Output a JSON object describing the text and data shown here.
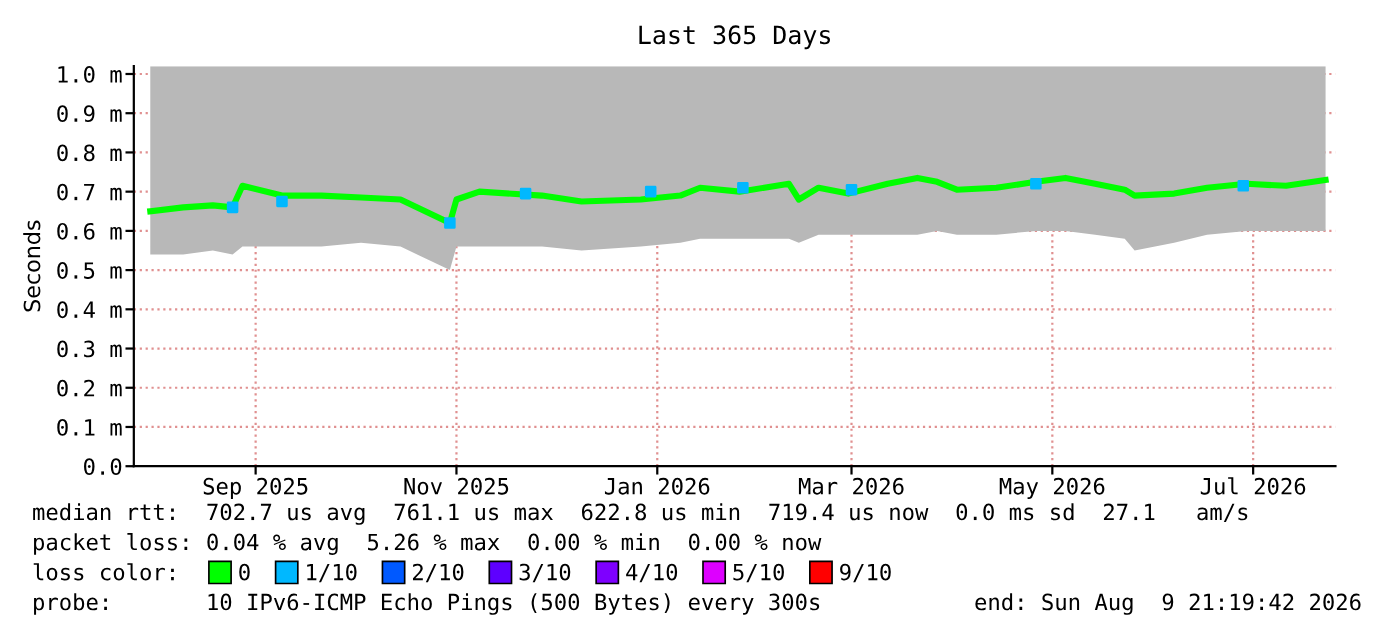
{
  "chart_data": {
    "type": "line",
    "title": "Last 365 Days",
    "ylabel": "Seconds",
    "x": [
      "2025-08-15",
      "2025-08-25",
      "2025-09-03",
      "2025-09-09",
      "2025-09-12",
      "2025-09-24",
      "2025-10-06",
      "2025-10-18",
      "2025-10-30",
      "2025-11-14",
      "2025-11-16",
      "2025-11-23",
      "2025-12-12",
      "2025-12-24",
      "2026-01-11",
      "2026-01-23",
      "2026-01-29",
      "2026-02-10",
      "2026-02-25",
      "2026-02-28",
      "2026-03-06",
      "2026-03-15",
      "2026-03-27",
      "2026-04-05",
      "2026-04-11",
      "2026-04-17",
      "2026-04-29",
      "2026-05-11",
      "2026-05-20",
      "2026-05-29",
      "2026-06-07",
      "2026-06-10",
      "2026-06-22",
      "2026-07-02",
      "2026-07-14",
      "2026-07-26",
      "2026-08-07"
    ],
    "series": [
      {
        "name": "0",
        "color": "#00ff00",
        "values": [
          0.65,
          0.66,
          0.665,
          0.66,
          0.715,
          0.69,
          0.69,
          0.685,
          0.68,
          0.62,
          0.68,
          0.7,
          0.69,
          0.675,
          0.68,
          0.69,
          0.71,
          0.7,
          0.72,
          0.68,
          0.71,
          0.695,
          0.72,
          0.735,
          0.725,
          0.705,
          0.71,
          0.725,
          0.735,
          0.72,
          0.705,
          0.69,
          0.695,
          0.71,
          0.72,
          0.715,
          0.73
        ],
        "lower": [
          0.54,
          0.54,
          0.55,
          0.54,
          0.56,
          0.56,
          0.56,
          0.57,
          0.56,
          0.5,
          0.56,
          0.56,
          0.56,
          0.55,
          0.56,
          0.57,
          0.58,
          0.58,
          0.58,
          0.57,
          0.59,
          0.59,
          0.59,
          0.59,
          0.6,
          0.59,
          0.59,
          0.6,
          0.6,
          0.59,
          0.58,
          0.55,
          0.57,
          0.59,
          0.6,
          0.6,
          0.6
        ],
        "upper": [
          1.02,
          1.02,
          1.02,
          1.02,
          1.02,
          1.02,
          1.02,
          1.02,
          1.02,
          1.02,
          1.02,
          1.02,
          1.02,
          1.02,
          1.02,
          1.02,
          1.02,
          1.02,
          1.02,
          1.02,
          1.02,
          1.02,
          1.02,
          1.02,
          1.02,
          1.02,
          1.02,
          1.02,
          1.02,
          1.02,
          1.02,
          1.02,
          1.02,
          1.02,
          1.02,
          1.02,
          1.02
        ]
      },
      {
        "name": "1/10",
        "type": "scatter",
        "marker": "square",
        "color": "#00b8ff",
        "x": [
          "2025-09-09",
          "2025-09-24",
          "2025-11-14",
          "2025-12-07",
          "2026-01-14",
          "2026-02-11",
          "2026-03-16",
          "2026-05-11",
          "2026-07-13"
        ],
        "values": [
          0.66,
          0.675,
          0.62,
          0.695,
          0.7,
          0.71,
          0.705,
          0.72,
          0.715
        ]
      },
      {
        "name": "2/10",
        "type": "scatter",
        "color": "#0059ff",
        "values": [
          null,
          null,
          null,
          null,
          null,
          null,
          null,
          null,
          null,
          null,
          null,
          null,
          null,
          null,
          null,
          null,
          null,
          null,
          null,
          null,
          null,
          null,
          null,
          null,
          null,
          null,
          null,
          null,
          null,
          null,
          null,
          null,
          null,
          null,
          null,
          null,
          null
        ]
      },
      {
        "name": "3/10",
        "type": "scatter",
        "color": "#5e00ff",
        "values": [
          null,
          null,
          null,
          null,
          null,
          null,
          null,
          null,
          null,
          null,
          null,
          null,
          null,
          null,
          null,
          null,
          null,
          null,
          null,
          null,
          null,
          null,
          null,
          null,
          null,
          null,
          null,
          null,
          null,
          null,
          null,
          null,
          null,
          null,
          null,
          null,
          null
        ]
      },
      {
        "name": "4/10",
        "type": "scatter",
        "color": "#7e00ff",
        "values": [
          null,
          null,
          null,
          null,
          null,
          null,
          null,
          null,
          null,
          null,
          null,
          null,
          null,
          null,
          null,
          null,
          null,
          null,
          null,
          null,
          null,
          null,
          null,
          null,
          null,
          null,
          null,
          null,
          null,
          null,
          null,
          null,
          null,
          null,
          null,
          null,
          null
        ]
      },
      {
        "name": "5/10",
        "type": "scatter",
        "color": "#dd00ff",
        "values": [
          null,
          null,
          null,
          null,
          null,
          null,
          null,
          null,
          null,
          null,
          null,
          null,
          null,
          null,
          null,
          null,
          null,
          null,
          null,
          null,
          null,
          null,
          null,
          null,
          null,
          null,
          null,
          null,
          null,
          null,
          null,
          null,
          null,
          null,
          null,
          null,
          null
        ]
      },
      {
        "name": "9/10",
        "type": "scatter",
        "color": "#ff0000",
        "values": [
          null,
          null,
          null,
          null,
          null,
          null,
          null,
          null,
          null,
          null,
          null,
          null,
          null,
          null,
          null,
          null,
          null,
          null,
          null,
          null,
          null,
          null,
          null,
          null,
          null,
          null,
          null,
          null,
          null,
          null,
          null,
          null,
          null,
          null,
          null,
          null,
          null
        ]
      }
    ],
    "xlim": [
      "2025-08-10",
      "2026-08-10"
    ],
    "xticks": [
      {
        "value": "2025-09-16",
        "label": "Sep 2025"
      },
      {
        "value": "2025-11-16",
        "label": "Nov 2025"
      },
      {
        "value": "2026-01-16",
        "label": "Jan 2026"
      },
      {
        "value": "2026-03-16",
        "label": "Mar 2026"
      },
      {
        "value": "2026-05-16",
        "label": "May 2026"
      },
      {
        "value": "2026-07-16",
        "label": "Jul 2026"
      }
    ],
    "ylim": [
      0,
      1.02
    ],
    "yticks": [
      {
        "value": 0,
        "label": "0.0"
      },
      {
        "value": 0.1,
        "label": "0.1 m"
      },
      {
        "value": 0.2,
        "label": "0.2 m"
      },
      {
        "value": 0.3,
        "label": "0.3 m"
      },
      {
        "value": 0.4,
        "label": "0.4 m"
      },
      {
        "value": 0.5,
        "label": "0.5 m"
      },
      {
        "value": 0.6,
        "label": "0.6 m"
      },
      {
        "value": 0.7,
        "label": "0.7 m"
      },
      {
        "value": 0.8,
        "label": "0.8 m"
      },
      {
        "value": 0.9,
        "label": "0.9 m"
      },
      {
        "value": 1.0,
        "label": "1.0 m"
      }
    ],
    "grid": true,
    "legend": "bottom",
    "annotations": [
      "median rtt:  702.7 us avg  761.1 us max  622.8 us min  719.4 us now  0.0 ms sd  27.1   am/s",
      "packet loss: 0.04 % avg  5.26 % max  0.00 % min  0.00 % now",
      "loss color:",
      "probe:       10 IPv6-ICMP Echo Pings (500 Bytes) every 300s",
      "end: Sun Aug  9 21:19:42 2026"
    ]
  }
}
